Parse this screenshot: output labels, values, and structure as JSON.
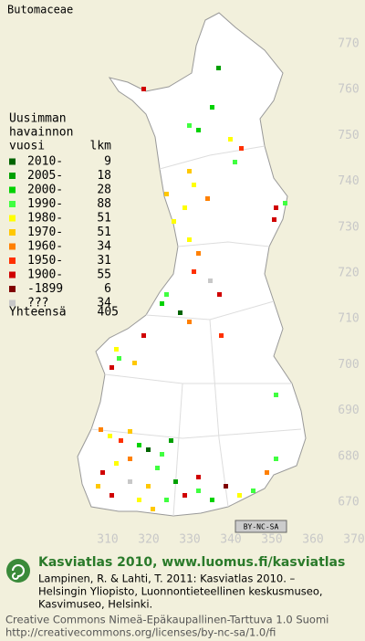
{
  "title": "Butomaceae",
  "legend": {
    "heading": [
      "Uusimman",
      "havainnon"
    ],
    "col_headers": [
      "vuosi",
      "lkm"
    ],
    "rows": [
      {
        "label": "2010-",
        "count": 9,
        "color": "#006400"
      },
      {
        "label": "2005-",
        "count": 18,
        "color": "#00a000"
      },
      {
        "label": "2000-",
        "count": 28,
        "color": "#00d200"
      },
      {
        "label": "1990-",
        "count": 88,
        "color": "#40ff40"
      },
      {
        "label": "1980-",
        "count": 51,
        "color": "#ffff00"
      },
      {
        "label": "1970-",
        "count": 51,
        "color": "#ffc800"
      },
      {
        "label": "1960-",
        "count": 34,
        "color": "#ff8000"
      },
      {
        "label": "1950-",
        "count": 31,
        "color": "#ff3000"
      },
      {
        "label": "1900-",
        "count": 55,
        "color": "#d00000"
      },
      {
        "label": "-1899",
        "count": 6,
        "color": "#800000"
      },
      {
        "label": "???",
        "count": 34,
        "color": "#c8c8c8"
      }
    ],
    "total": {
      "label": "Yhteensä",
      "count": 405
    }
  },
  "grid_labels": {
    "north": [
      770,
      760,
      750,
      740,
      730,
      720,
      710,
      700,
      690,
      680,
      670
    ],
    "east": [
      310,
      320,
      330,
      340,
      350,
      360,
      370
    ]
  },
  "license_badge": "BY-NC-SA",
  "footer": {
    "heading": "Kasviatlas 2010, www.luomus.fi/kasviatlas",
    "citation": [
      "Lampinen, R. & Lahti, T. 2011: Kasviatlas 2010. –",
      "Helsingin Yliopisto, Luonnontieteellinen keskusmuseo,",
      "Kasvimuseo, Helsinki."
    ],
    "license": [
      "Creative Commons Nimeä-Epäkaupallinen-Tarttuva 1.0 Suomi",
      "http://creativecommons.org/licenses/by-nc-sa/1.0/fi"
    ]
  }
}
